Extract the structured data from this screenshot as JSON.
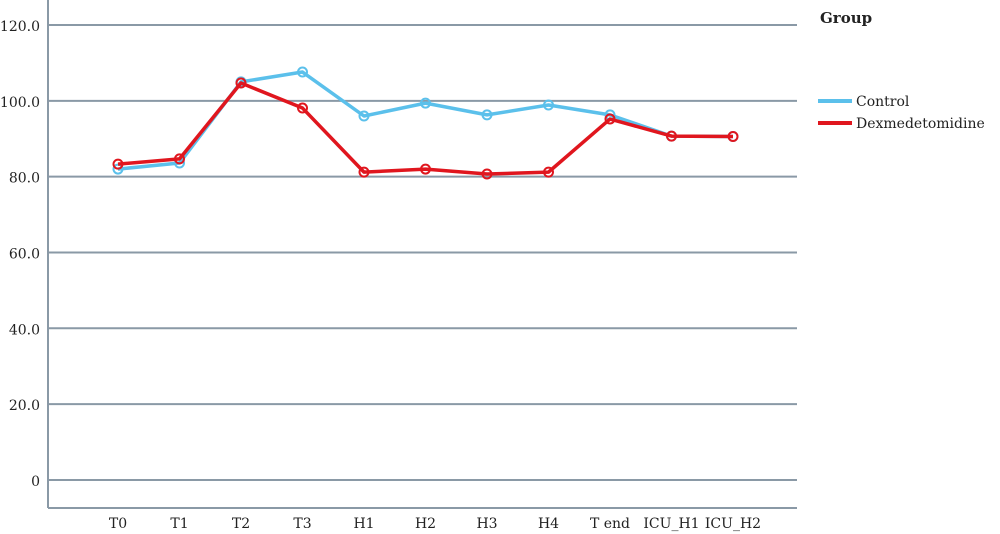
{
  "chart_data": {
    "type": "line",
    "categories": [
      "T0",
      "T1",
      "T2",
      "T3",
      "H1",
      "H2",
      "H3",
      "H4",
      "T end",
      "ICU_H1",
      "ICU_H2"
    ],
    "series": [
      {
        "name": "Control",
        "color": "#5bc0eb",
        "values": [
          82.0,
          83.6,
          105.0,
          107.6,
          96.0,
          99.4,
          96.3,
          98.9,
          96.3,
          90.7,
          90.6
        ]
      },
      {
        "name": "Dexmedetomidine",
        "color": "#e0161e",
        "values": [
          83.3,
          84.7,
          104.7,
          98.1,
          81.2,
          82.0,
          80.7,
          81.2,
          95.2,
          90.7,
          90.6
        ]
      }
    ],
    "legend_title": "Group",
    "ylim": [
      -7.4,
      126.6
    ],
    "yticks": [
      0,
      {
        "value": 20,
        "label": "20.0"
      },
      {
        "value": 40,
        "label": "40.0"
      },
      {
        "value": 60,
        "label": "60.0"
      },
      {
        "value": 80,
        "label": "80.0"
      },
      {
        "value": 100,
        "label": "100.0"
      },
      {
        "value": 120,
        "label": "120.0"
      }
    ],
    "grid": true
  }
}
